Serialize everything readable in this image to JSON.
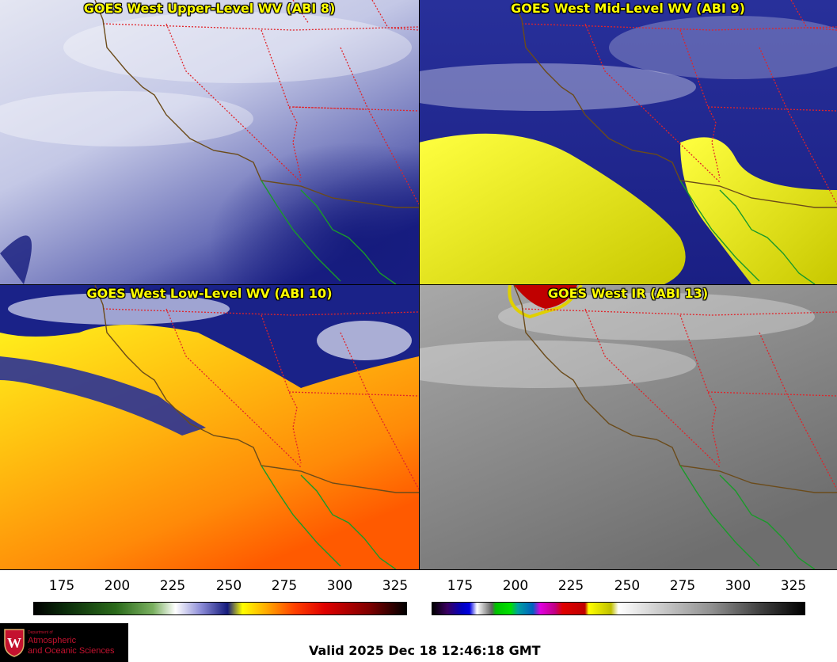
{
  "panels": [
    {
      "title": "GOES West Upper-Level WV (ABI 8)"
    },
    {
      "title": "GOES West Mid-Level WV (ABI 9)"
    },
    {
      "title": "GOES West Low-Level WV (ABI 10)"
    },
    {
      "title": "GOES West IR (ABI 13)"
    }
  ],
  "colorbars": {
    "wv": {
      "ticks": [
        "175",
        "200",
        "225",
        "250",
        "275",
        "300",
        "325"
      ]
    },
    "ir": {
      "ticks": [
        "175",
        "200",
        "225",
        "250",
        "275",
        "300",
        "325"
      ]
    }
  },
  "logo": {
    "dept": "Department of",
    "line1": "Atmospheric",
    "line2": "and Oceanic Sciences",
    "letter": "W"
  },
  "valid_time": "Valid 2025 Dec 18 12:46:18 GMT",
  "colors": {
    "border_state": "#e0242a",
    "coast": "#6b4b1a",
    "mexico_coast": "#1a9a2a",
    "title_text": "#ffff00"
  }
}
